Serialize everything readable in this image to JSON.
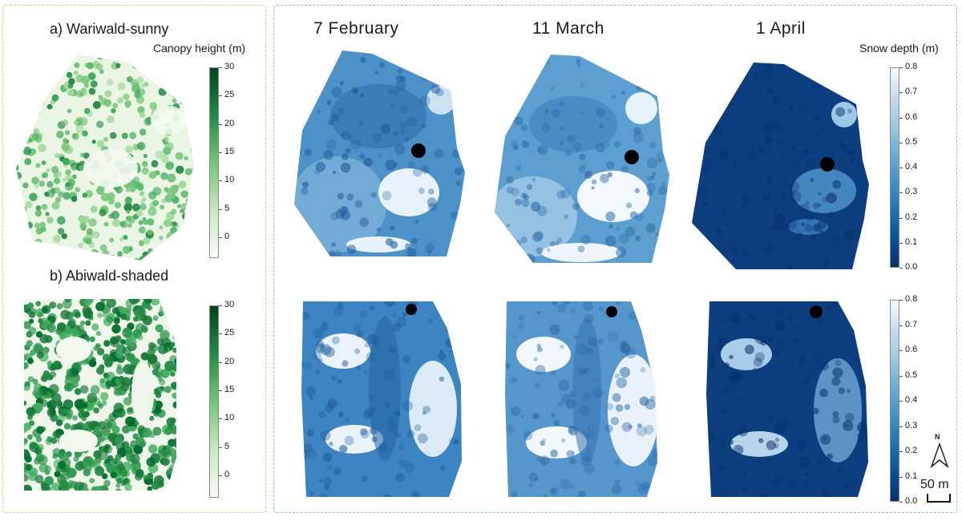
{
  "panel_a": {
    "label": "a) Wariwald-sunny",
    "colorbar_title": "Canopy height (m)",
    "colorbar_ticks": [
      "30",
      "25",
      "20",
      "15",
      "10",
      "5",
      "0"
    ]
  },
  "panel_b": {
    "label": "b) Abiwald-shaded",
    "colorbar_ticks": [
      "30",
      "25",
      "20",
      "15",
      "10",
      "5",
      "0"
    ]
  },
  "snow": {
    "dates": [
      "7 February",
      "11 March",
      "1 April"
    ],
    "colorbar_title": "Snow depth (m)",
    "colorbar_ticks": [
      "0.8",
      "0.7",
      "0.6",
      "0.5",
      "0.4",
      "0.3",
      "0.2",
      "0.1",
      "0.0"
    ]
  },
  "north_arrow": {
    "label": "N"
  },
  "scale_bar": {
    "label": "50 m"
  },
  "colors": {
    "canopy_low": "#f7fcf5",
    "canopy_high": "#00441b",
    "snow_low": "#08306b",
    "snow_high": "#f7fbff",
    "left_border": "#b9d77c",
    "right_border": "#8fb8dc"
  }
}
